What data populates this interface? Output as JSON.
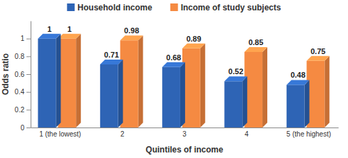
{
  "chart_data": {
    "type": "bar",
    "categories": [
      "1 (the lowest)",
      "2",
      "3",
      "4",
      "5 (the highest)"
    ],
    "series": [
      {
        "name": "Household income",
        "color": "#2e64b5",
        "values": [
          1,
          0.71,
          0.68,
          0.52,
          0.48
        ]
      },
      {
        "name": "Income of study subjects",
        "color": "#f58a42",
        "values": [
          1,
          0.98,
          0.89,
          0.85,
          0.75
        ]
      }
    ],
    "x_label": "Quintiles of income",
    "y_label": "Odds ratio",
    "ylim": [
      0,
      1.2
    ],
    "yticks": [
      0,
      0.2,
      0.4,
      0.6,
      0.8,
      1
    ],
    "grid": false,
    "legend": "top",
    "data_labels": true
  }
}
